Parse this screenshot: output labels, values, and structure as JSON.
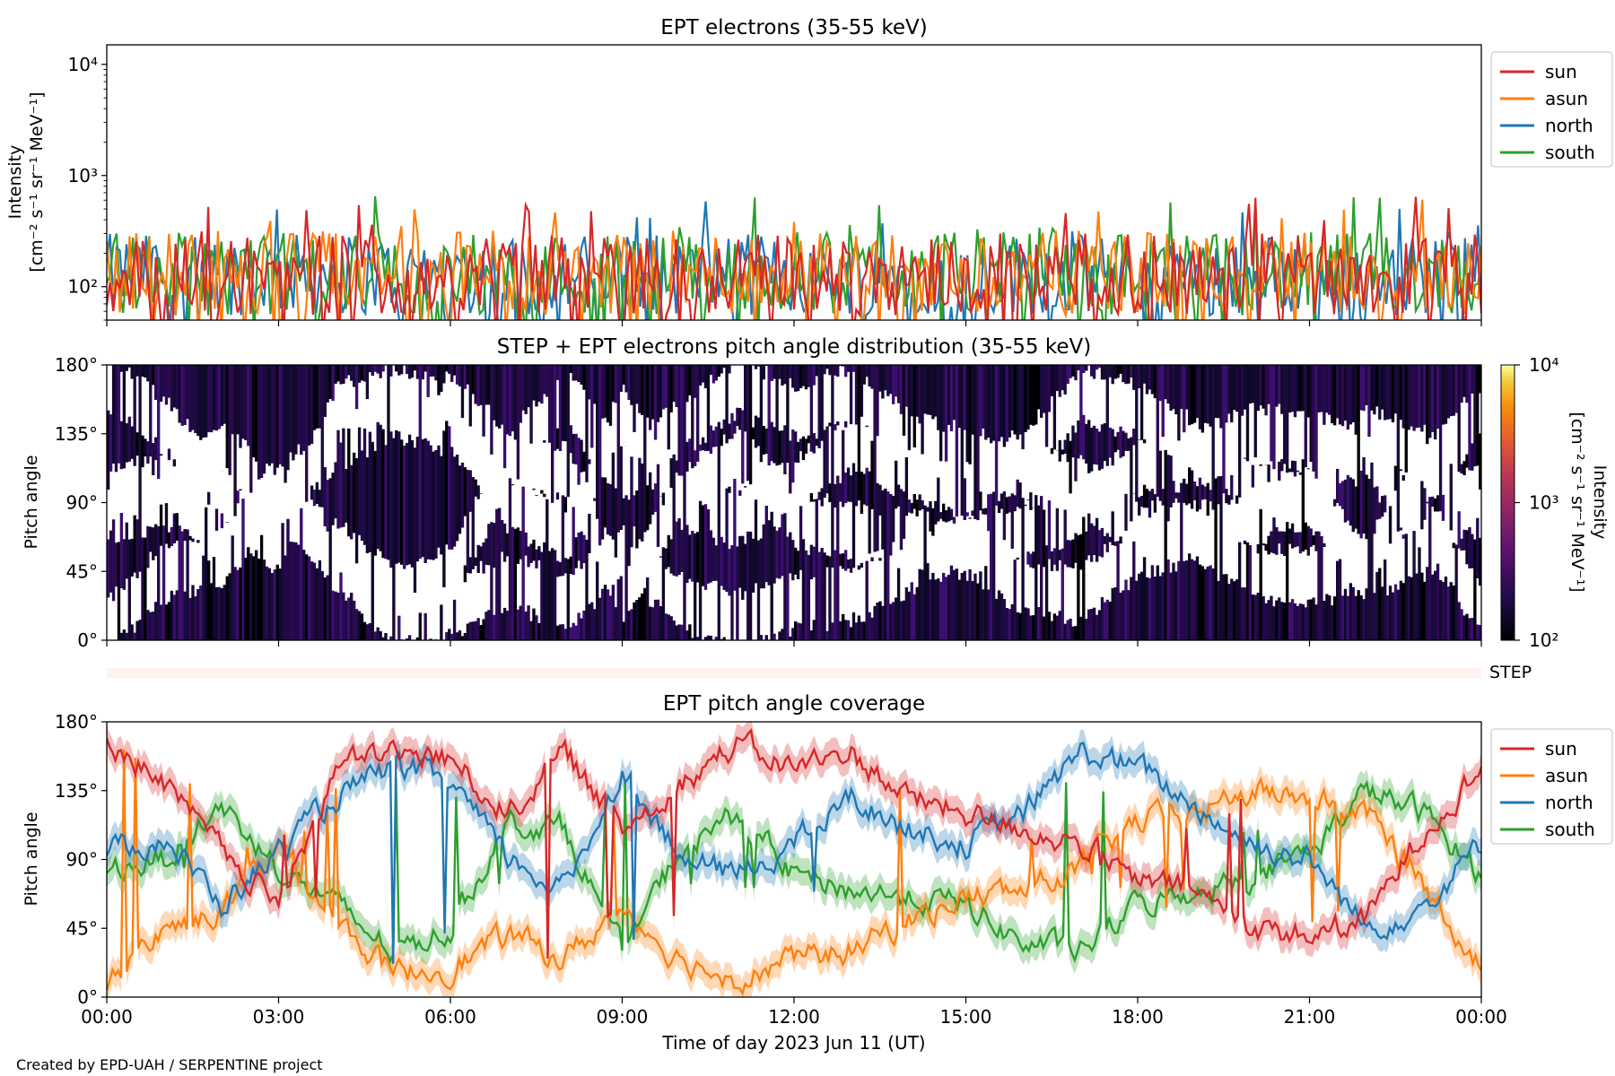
{
  "footer": "Created by EPD-UAH / SERPENTINE project",
  "chart_data": [
    {
      "type": "line",
      "title": "EPT electrons (35-55 keV)",
      "ylabel": "Intensity",
      "yunits": "[cm⁻² s⁻¹ sr⁻¹ MeV⁻¹]",
      "yscale": "log",
      "ylim": [
        50,
        15000
      ],
      "yticks": [
        {
          "label": "10²",
          "value": 100
        },
        {
          "label": "10³",
          "value": 1000
        },
        {
          "label": "10⁴",
          "value": 10000
        }
      ],
      "legend": "right",
      "series": [
        {
          "name": "sun",
          "color": "#d62728",
          "typical": [
            55,
            300
          ],
          "peak": 650
        },
        {
          "name": "asun",
          "color": "#ff7f0e",
          "typical": [
            55,
            320
          ],
          "peak": 620
        },
        {
          "name": "north",
          "color": "#1f77b4",
          "typical": [
            55,
            300
          ],
          "peak": 620
        },
        {
          "name": "south",
          "color": "#2ca02c",
          "typical": [
            55,
            310
          ],
          "peak": 680
        }
      ]
    },
    {
      "type": "heatmap",
      "title": "STEP + EPT electrons pitch angle distribution (35-55 keV)",
      "ylabel": "Pitch angle",
      "ylim": [
        0,
        180
      ],
      "yticks": [
        "0°",
        "45°",
        "90°",
        "135°",
        "180°"
      ],
      "colorbar": {
        "label": "Intensity",
        "units": "[cm⁻² s⁻¹ sr⁻¹ MeV⁻¹]",
        "scale": "log",
        "range": [
          100,
          10000
        ],
        "ticks": [
          "10²",
          "10³",
          "10⁴"
        ],
        "colormap": "inferno"
      },
      "typical_intensity": [
        100,
        250
      ]
    },
    {
      "type": "heatmap",
      "label": "STEP",
      "note": "empty strip"
    },
    {
      "type": "line",
      "title": "EPT pitch angle coverage",
      "ylabel": "Pitch angle",
      "xlabel": "Time of day 2023 Jun 11 (UT)",
      "ylim": [
        0,
        180
      ],
      "yticks": [
        "0°",
        "45°",
        "90°",
        "135°",
        "180°"
      ],
      "xticks": [
        "00:00",
        "03:00",
        "06:00",
        "09:00",
        "12:00",
        "15:00",
        "18:00",
        "21:00",
        "00:00"
      ],
      "xrange_hours": [
        0,
        24
      ],
      "legend": "right",
      "series": [
        {
          "name": "sun",
          "color": "#d62728",
          "points": [
            [
              0,
              170
            ],
            [
              1,
              140
            ],
            [
              2,
              95
            ],
            [
              3,
              60
            ],
            [
              4,
              150
            ],
            [
              5,
              160
            ],
            [
              6,
              155
            ],
            [
              7,
              120
            ],
            [
              8,
              160
            ],
            [
              9,
              110
            ],
            [
              10,
              140
            ],
            [
              11,
              165
            ],
            [
              12,
              150
            ],
            [
              13,
              160
            ],
            [
              14,
              130
            ],
            [
              15,
              120
            ],
            [
              16,
              110
            ],
            [
              17,
              100
            ],
            [
              18,
              75
            ],
            [
              19,
              70
            ],
            [
              20,
              45
            ],
            [
              21,
              40
            ],
            [
              22,
              50
            ],
            [
              23,
              110
            ],
            [
              24,
              150
            ]
          ]
        },
        {
          "name": "asun",
          "color": "#ff7f0e",
          "points": [
            [
              0,
              10
            ],
            [
              1,
              45
            ],
            [
              2,
              55
            ],
            [
              3,
              100
            ],
            [
              4,
              50
            ],
            [
              5,
              15
            ],
            [
              6,
              20
            ],
            [
              7,
              40
            ],
            [
              8,
              25
            ],
            [
              9,
              60
            ],
            [
              10,
              25
            ],
            [
              11,
              12
            ],
            [
              12,
              25
            ],
            [
              13,
              30
            ],
            [
              14,
              50
            ],
            [
              15,
              65
            ],
            [
              16,
              70
            ],
            [
              17,
              85
            ],
            [
              18,
              115
            ],
            [
              19,
              120
            ],
            [
              20,
              135
            ],
            [
              21,
              130
            ],
            [
              22,
              120
            ],
            [
              23,
              75
            ],
            [
              24,
              20
            ]
          ]
        },
        {
          "name": "north",
          "color": "#1f77b4",
          "points": [
            [
              0,
              95
            ],
            [
              1,
              105
            ],
            [
              2,
              60
            ],
            [
              3,
              95
            ],
            [
              4,
              130
            ],
            [
              5,
              150
            ],
            [
              6,
              140
            ],
            [
              7,
              90
            ],
            [
              8,
              70
            ],
            [
              9,
              150
            ],
            [
              10,
              90
            ],
            [
              11,
              80
            ],
            [
              12,
              100
            ],
            [
              13,
              130
            ],
            [
              14,
              110
            ],
            [
              15,
              100
            ],
            [
              16,
              120
            ],
            [
              17,
              160
            ],
            [
              18,
              150
            ],
            [
              19,
              125
            ],
            [
              20,
              100
            ],
            [
              21,
              90
            ],
            [
              22,
              45
            ],
            [
              23,
              60
            ],
            [
              24,
              100
            ]
          ]
        },
        {
          "name": "south",
          "color": "#2ca02c",
          "points": [
            [
              0,
              85
            ],
            [
              1,
              90
            ],
            [
              2,
              125
            ],
            [
              3,
              85
            ],
            [
              4,
              60
            ],
            [
              5,
              30
            ],
            [
              6,
              45
            ],
            [
              7,
              115
            ],
            [
              8,
              110
            ],
            [
              9,
              30
            ],
            [
              10,
              95
            ],
            [
              11,
              120
            ],
            [
              12,
              80
            ],
            [
              13,
              70
            ],
            [
              14,
              65
            ],
            [
              15,
              60
            ],
            [
              16,
              35
            ],
            [
              17,
              30
            ],
            [
              18,
              60
            ],
            [
              19,
              70
            ],
            [
              20,
              80
            ],
            [
              21,
              95
            ],
            [
              22,
              135
            ],
            [
              23,
              120
            ],
            [
              24,
              80
            ]
          ]
        }
      ],
      "band_width_deg": 18
    }
  ]
}
